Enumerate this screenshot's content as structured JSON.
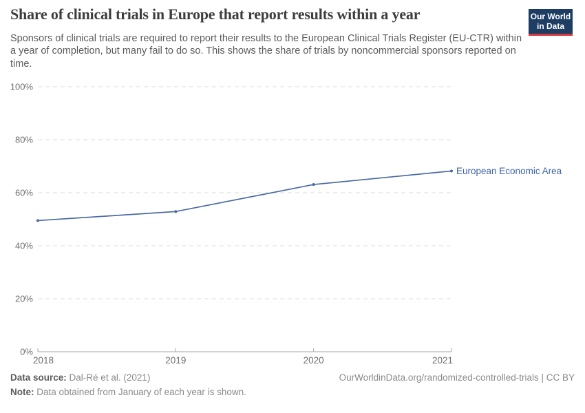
{
  "header": {
    "title": "Share of clinical trials in Europe that report results within a year",
    "subtitle": "Sponsors of clinical trials are required to report their results to the European Clinical Trials Register (EU-CTR) within a year of completion, but many fail to do so. This shows the share of trials by noncommercial sponsors reported on time.",
    "logo": {
      "line1": "Our World",
      "line2": "in Data",
      "bg_color": "#1d3d63",
      "accent_color": "#d7373f"
    }
  },
  "chart_data": {
    "type": "line",
    "title": "Share of clinical trials in Europe that report results within a year",
    "x": [
      "2018",
      "2019",
      "2020",
      "2021"
    ],
    "series": [
      {
        "name": "European Economic Area",
        "values": [
          49.5,
          52.9,
          63.1,
          68.2
        ],
        "color": "#4a69a5",
        "label_color": "#3d62a6"
      }
    ],
    "xlabel": "",
    "ylabel": "",
    "ylim": [
      0,
      100
    ],
    "yticks": [
      0,
      20,
      40,
      60,
      80,
      100
    ],
    "ytick_suffix": "%",
    "grid": "horizontal-dashed",
    "gridline_color": "#dedede",
    "axis_color": "#a5a5a5",
    "tick_label_color": "#6e6e6e",
    "legend_position": "line-end-label",
    "markers": true
  },
  "footer": {
    "source_label": "Data source:",
    "source_value": "Dal-Ré et al. (2021)",
    "note_label": "Note:",
    "note_value": "Data obtained from January of each year is shown.",
    "credit": "OurWorldinData.org/randomized-controlled-trials | CC BY"
  }
}
